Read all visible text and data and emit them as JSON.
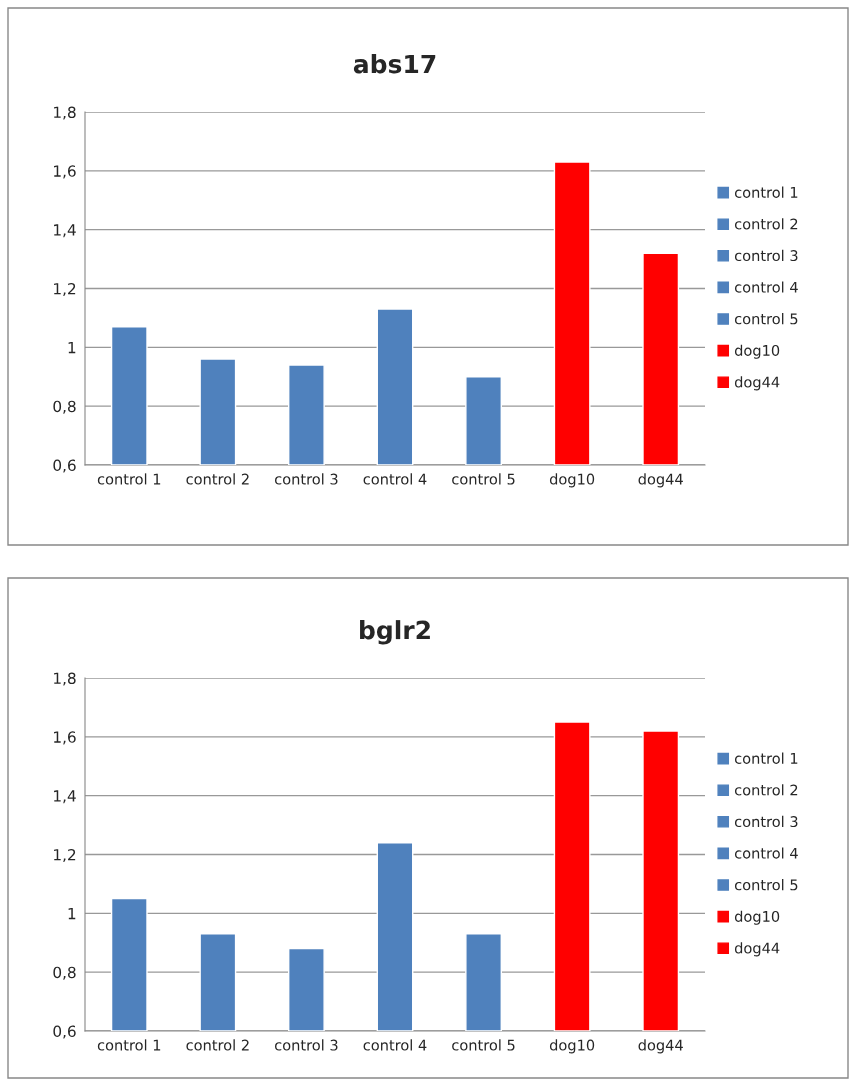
{
  "chart_data": [
    {
      "type": "bar",
      "title": "abs17",
      "stacked": true,
      "categories": [
        "control 1",
        "control 2",
        "control 3",
        "control 4",
        "control 5",
        "dog10",
        "dog44"
      ],
      "series": [
        {
          "name": "control 1",
          "color": "#4f81bd",
          "values": [
            1.07,
            null,
            null,
            null,
            null,
            null,
            null
          ]
        },
        {
          "name": "control 2",
          "color": "#4f81bd",
          "values": [
            null,
            0.96,
            null,
            null,
            null,
            null,
            null
          ]
        },
        {
          "name": "control 3",
          "color": "#4f81bd",
          "values": [
            null,
            null,
            0.94,
            null,
            null,
            null,
            null
          ]
        },
        {
          "name": "control 4",
          "color": "#4f81bd",
          "values": [
            null,
            null,
            null,
            1.13,
            null,
            null,
            null
          ]
        },
        {
          "name": "control 5",
          "color": "#4f81bd",
          "values": [
            null,
            null,
            null,
            null,
            0.9,
            null,
            null
          ]
        },
        {
          "name": "dog10",
          "color": "#ff0000",
          "values": [
            null,
            null,
            null,
            null,
            null,
            1.63,
            null
          ]
        },
        {
          "name": "dog44",
          "color": "#ff0000",
          "values": [
            null,
            null,
            null,
            null,
            null,
            null,
            1.32
          ]
        }
      ],
      "ylim": [
        0.6,
        1.8
      ],
      "yticks": [
        {
          "value": 0.6,
          "label": "0,6"
        },
        {
          "value": 0.8,
          "label": "0,8"
        },
        1,
        {
          "value": 1.2,
          "label": "1,2"
        },
        {
          "value": 1.4,
          "label": "1,4"
        },
        {
          "value": 1.6,
          "label": "1,6"
        },
        {
          "value": 1.8,
          "label": "1,8"
        }
      ],
      "grid": "y",
      "legend": "right"
    },
    {
      "type": "bar",
      "title": "bglr2",
      "stacked": true,
      "categories": [
        "control 1",
        "control 2",
        "control 3",
        "control 4",
        "control 5",
        "dog10",
        "dog44"
      ],
      "series": [
        {
          "name": "control 1",
          "color": "#4f81bd",
          "values": [
            1.05,
            null,
            null,
            null,
            null,
            null,
            null
          ]
        },
        {
          "name": "control 2",
          "color": "#4f81bd",
          "values": [
            null,
            0.93,
            null,
            null,
            null,
            null,
            null
          ]
        },
        {
          "name": "control 3",
          "color": "#4f81bd",
          "values": [
            null,
            null,
            0.88,
            null,
            null,
            null,
            null
          ]
        },
        {
          "name": "control 4",
          "color": "#4f81bd",
          "values": [
            null,
            null,
            null,
            1.24,
            null,
            null,
            null
          ]
        },
        {
          "name": "control 5",
          "color": "#4f81bd",
          "values": [
            null,
            null,
            null,
            null,
            0.93,
            null,
            null
          ]
        },
        {
          "name": "dog10",
          "color": "#ff0000",
          "values": [
            null,
            null,
            null,
            null,
            null,
            1.65,
            null
          ]
        },
        {
          "name": "dog44",
          "color": "#ff0000",
          "values": [
            null,
            null,
            null,
            null,
            null,
            null,
            1.62
          ]
        }
      ],
      "ylim": [
        0.6,
        1.8
      ],
      "yticks": [
        {
          "value": 0.6,
          "label": "0,6"
        },
        {
          "value": 0.8,
          "label": "0,8"
        },
        1,
        {
          "value": 1.2,
          "label": "1,2"
        },
        {
          "value": 1.4,
          "label": "1,4"
        },
        {
          "value": 1.6,
          "label": "1,6"
        },
        {
          "value": 1.8,
          "label": "1,8"
        }
      ],
      "grid": "y",
      "legend": "right"
    }
  ]
}
